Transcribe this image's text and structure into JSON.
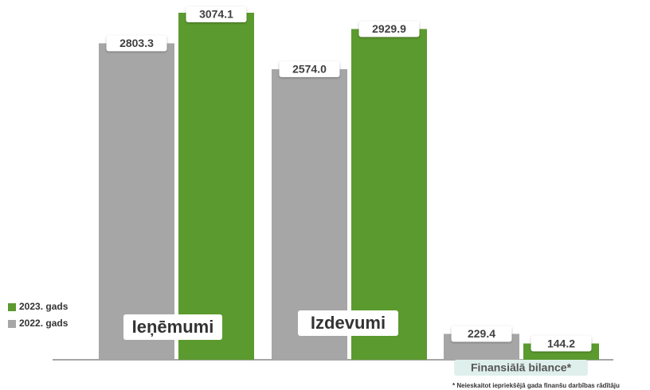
{
  "chart_data": {
    "type": "bar",
    "categories": [
      "Ieņēmumi",
      "Izdevumi",
      "Finansiālā bilance*"
    ],
    "series": [
      {
        "name": "2022. gads",
        "color": "#a6a6a6",
        "values": [
          2803.3,
          2574.0,
          229.4
        ],
        "value_labels": [
          "2803.3",
          "2574.0",
          "229.4"
        ]
      },
      {
        "name": "2023. gads",
        "color": "#5b9a2e",
        "values": [
          3074.1,
          2929.9,
          144.2
        ],
        "value_labels": [
          "3074.1",
          "2929.9",
          "144.2"
        ]
      }
    ],
    "footnote": "* Neieskaitot iepriekšējā gada finanšu darbības rādītāju"
  }
}
